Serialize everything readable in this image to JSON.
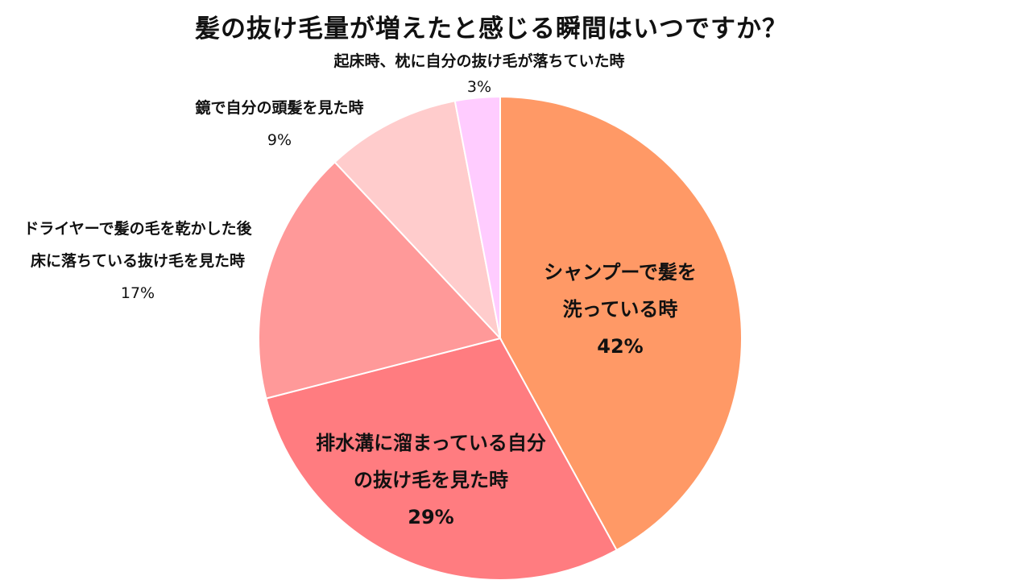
{
  "title": "髪の抜け毛量が増えたと感じる瞬間はいつですか？",
  "chart_data": {
    "type": "pie",
    "title": "髪の抜け毛量が増えたと感じる瞬間はいつですか？",
    "start_angle_deg": 0,
    "direction": "clockwise",
    "slices": [
      {
        "label_lines": [
          "シャンプーで髪を",
          "洗っている時"
        ],
        "value": 42,
        "value_label": "42%",
        "color": "#FF9966"
      },
      {
        "label_lines": [
          "排水溝に溜まっている自分",
          "の抜け毛を見た時"
        ],
        "value": 29,
        "value_label": "29%",
        "color": "#FF7C80"
      },
      {
        "label_lines": [
          "ドライヤーで髪の毛を乾かした後",
          "床に落ちている抜け毛を見た時"
        ],
        "value": 17,
        "value_label": "17%",
        "color": "#FF9999"
      },
      {
        "label_lines": [
          "鏡で自分の頭髪を見た時"
        ],
        "value": 9,
        "value_label": "9%",
        "color": "#FFCCCC"
      },
      {
        "label_lines": [
          "起床時、枕に自分の抜け毛が落ちていた時"
        ],
        "value": 3,
        "value_label": "3%",
        "color": "#FFCCFF"
      }
    ]
  }
}
